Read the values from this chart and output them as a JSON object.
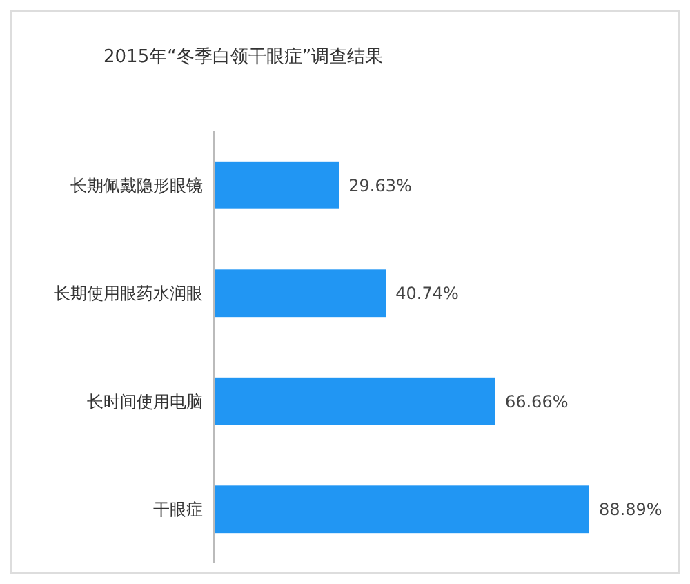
{
  "chart_data": {
    "type": "bar",
    "orientation": "horizontal",
    "title": "2015年“冬季白领干眼症”调查结果",
    "categories": [
      "长期佩戴隐形眼镜",
      "长期使用眼药水润眼",
      "长时间使用电脑",
      "干眼症"
    ],
    "values": [
      29.63,
      40.74,
      66.66,
      88.89
    ],
    "value_labels": [
      "29.63%",
      "40.74%",
      "66.66%",
      "88.89%"
    ],
    "color": "#2196f3",
    "tick_labels": "y"
  }
}
